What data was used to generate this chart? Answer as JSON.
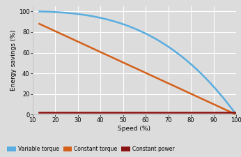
{
  "title": "",
  "xlabel": "Speed (%)",
  "ylabel": "Energy savings (%)",
  "xlim": [
    10,
    100
  ],
  "ylim": [
    0,
    105
  ],
  "xticks": [
    10,
    20,
    30,
    40,
    50,
    60,
    70,
    80,
    90,
    100
  ],
  "yticks": [
    0,
    20,
    40,
    60,
    80,
    100
  ],
  "background_color": "#dcdcdc",
  "plot_bg_color": "#dcdcdc",
  "grid_color": "#ffffff",
  "variable_torque_color": "#5aade0",
  "constant_torque_color": "#d4601a",
  "constant_power_color": "#8b1212",
  "legend_labels": [
    "Variable torque",
    "Constant torque",
    "Constant power"
  ],
  "line_width": 1.8,
  "speed_start": 13,
  "speed_end": 100,
  "ct_start_value": 88,
  "cp_value": 2.0
}
